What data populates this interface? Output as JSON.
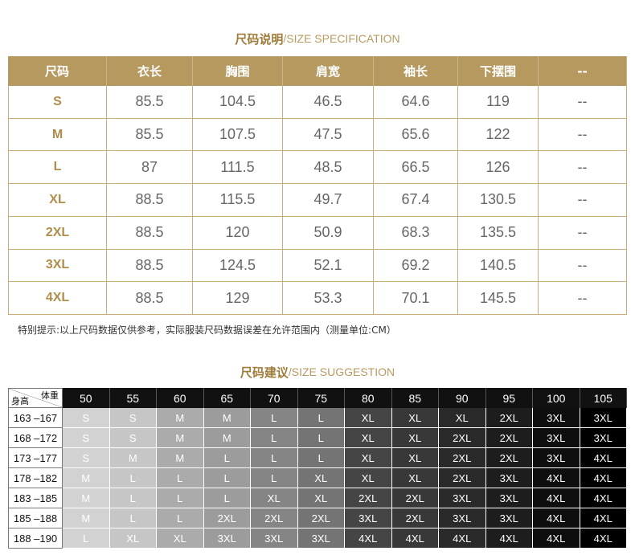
{
  "spec": {
    "title_cn": "尺码说明",
    "title_en": "/SIZE SPECIFICATION",
    "header": [
      "尺码",
      "衣长",
      "胸围",
      "肩宽",
      "袖长",
      "下摆围",
      "--"
    ],
    "rows": [
      [
        "S",
        "85.5",
        "104.5",
        "46.5",
        "64.6",
        "119",
        "--"
      ],
      [
        "M",
        "85.5",
        "107.5",
        "47.5",
        "65.6",
        "122",
        "--"
      ],
      [
        "L",
        "87",
        "111.5",
        "48.5",
        "66.5",
        "126",
        "--"
      ],
      [
        "XL",
        "88.5",
        "115.5",
        "49.7",
        "67.4",
        "130.5",
        "--"
      ],
      [
        "2XL",
        "88.5",
        "120",
        "50.9",
        "68.3",
        "135.5",
        "--"
      ],
      [
        "3XL",
        "88.5",
        "124.5",
        "52.1",
        "69.2",
        "140.5",
        "--"
      ],
      [
        "4XL",
        "88.5",
        "129",
        "53.3",
        "70.1",
        "145.5",
        "--"
      ]
    ],
    "note": "特别提示:以上尺码数据仅供参考，实际服装尺码数据误差在允许范围内（测量单位:CM）"
  },
  "suggestion": {
    "title_cn": "尺码建议",
    "title_en": "/SIZE SUGGESTION",
    "corner_weight": "体重",
    "corner_height": "身高",
    "weights": [
      "50",
      "55",
      "60",
      "65",
      "70",
      "75",
      "80",
      "85",
      "90",
      "95",
      "100",
      "105"
    ],
    "rows": [
      [
        "163 –167",
        "S",
        "S",
        "M",
        "M",
        "L",
        "L",
        "XL",
        "XL",
        "XL",
        "2XL",
        "3XL",
        "3XL"
      ],
      [
        "168 –172",
        "S",
        "S",
        "M",
        "M",
        "L",
        "L",
        "XL",
        "XL",
        "2XL",
        "2XL",
        "3XL",
        "3XL"
      ],
      [
        "173 –177",
        "S",
        "M",
        "M",
        "L",
        "L",
        "L",
        "XL",
        "XL",
        "2XL",
        "2XL",
        "3XL",
        "4XL"
      ],
      [
        "178 –182",
        "M",
        "L",
        "L",
        "L",
        "L",
        "XL",
        "XL",
        "XL",
        "2XL",
        "3XL",
        "4XL",
        "4XL"
      ],
      [
        "183 –185",
        "M",
        "L",
        "L",
        "L",
        "XL",
        "XL",
        "2XL",
        "2XL",
        "3XL",
        "3XL",
        "4XL",
        "4XL"
      ],
      [
        "185 –188",
        "M",
        "L",
        "L",
        "2XL",
        "2XL",
        "2XL",
        "3XL",
        "2XL",
        "3XL",
        "3XL",
        "4XL",
        "4XL"
      ],
      [
        "188 –190",
        "L",
        "XL",
        "XL",
        "3XL",
        "3XL",
        "3XL",
        "4XL",
        "4XL",
        "4XL",
        "4XL",
        "4XL",
        "4XL"
      ]
    ]
  }
}
